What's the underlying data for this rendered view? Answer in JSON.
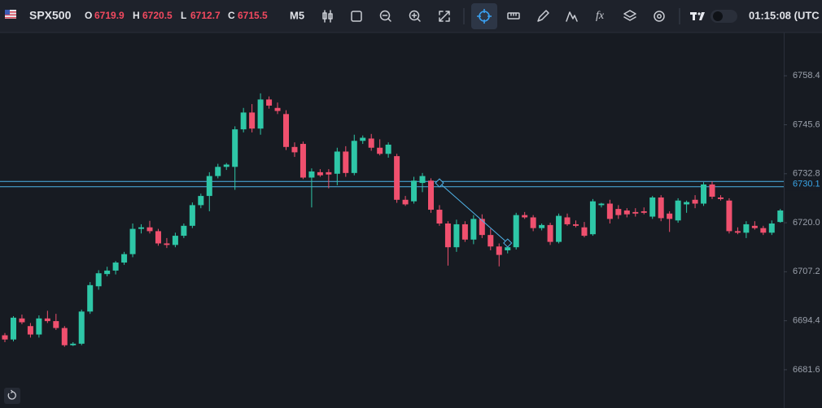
{
  "toolbar": {
    "symbol": "SPX500",
    "ohlc": [
      {
        "label": "O",
        "value": 6719.9
      },
      {
        "label": "H",
        "value": 6720.5
      },
      {
        "label": "L",
        "value": 6712.7
      },
      {
        "label": "C",
        "value": 6715.5
      }
    ],
    "timeframe": "M5",
    "clock": "01:15:08 (UTC"
  },
  "chart_data": {
    "type": "candlestick",
    "up_color": "#2ec7a7",
    "down_color": "#f0506e",
    "open": [
      6690.6,
      6689.5,
      6695.0,
      6693.0,
      6690.8,
      6695.0,
      6694.3,
      6692.5,
      6688.0,
      6688.4,
      6696.8,
      6703.4,
      6706.6,
      6707.5,
      6709.6,
      6711.8,
      6718.4,
      6718.8,
      6717.8,
      6714.6,
      6714.2,
      6716.6,
      6719.2,
      6724.6,
      6727.0,
      6732.2,
      6734.6,
      6734.6,
      6744.4,
      6748.8,
      6744.6,
      6752.2,
      6750.0,
      6748.4,
      6739.8,
      6740.6,
      6731.8,
      6733.2,
      6733.2,
      6732.8,
      6738.6,
      6733.0,
      6741.4,
      6742.0,
      6739.6,
      6738.0,
      6737.4,
      6726.0,
      6725.6,
      6730.4,
      6731.0,
      6723.4,
      6719.8,
      6713.6,
      6719.6,
      6715.6,
      6721.0,
      6716.8,
      6713.8,
      6712.8,
      6713.6,
      6722.0,
      6721.4,
      6718.6,
      6719.4,
      6715.0,
      6721.4,
      6719.6,
      6718.8,
      6717.0,
      6724.6,
      6725.0,
      6723.6,
      6723.2,
      6722.8,
      6723.0,
      6721.6,
      6726.6,
      6722.4,
      6720.6,
      6724.8,
      6726.0,
      6725.0,
      6730.0,
      6726.6,
      6725.8,
      6717.8,
      6717.4,
      6719.2,
      6718.6,
      6717.4,
      6720.2
    ],
    "high": [
      6691.2,
      6695.6,
      6696.0,
      6693.8,
      6695.8,
      6697.0,
      6696.2,
      6693.0,
      6688.8,
      6697.3,
      6704.5,
      6707.6,
      6708.5,
      6710.0,
      6712.4,
      6719.8,
      6719.6,
      6720.5,
      6718.4,
      6716.0,
      6717.4,
      6719.8,
      6725.3,
      6727.6,
      6733.2,
      6735.4,
      6735.6,
      6745.2,
      6750.0,
      6751.0,
      6753.8,
      6753.0,
      6751.4,
      6749.4,
      6741.0,
      6741.2,
      6734.2,
      6734.0,
      6734.0,
      6739.6,
      6740.0,
      6743.0,
      6742.8,
      6743.2,
      6741.8,
      6741.0,
      6738.0,
      6727.0,
      6732.0,
      6733.0,
      6731.6,
      6724.6,
      6720.4,
      6720.8,
      6720.4,
      6722.0,
      6722.2,
      6718.4,
      6714.6,
      6714.4,
      6722.6,
      6722.8,
      6722.0,
      6719.8,
      6720.0,
      6722.4,
      6722.4,
      6720.6,
      6720.2,
      6726.2,
      6725.2,
      6726.0,
      6724.6,
      6723.8,
      6723.8,
      6724.0,
      6727.0,
      6727.2,
      6723.0,
      6726.4,
      6725.8,
      6727.2,
      6730.6,
      6730.8,
      6727.2,
      6726.4,
      6718.8,
      6720.4,
      6720.4,
      6719.2,
      6720.6,
      6723.6
    ],
    "low": [
      6688.8,
      6689.0,
      6693.5,
      6690.0,
      6690.0,
      6693.8,
      6692.0,
      6687.6,
      6687.8,
      6688.0,
      6696.2,
      6702.5,
      6706.0,
      6706.5,
      6709.0,
      6711.0,
      6717.2,
      6717.2,
      6714.0,
      6713.4,
      6713.6,
      6716.0,
      6718.6,
      6723.8,
      6723.0,
      6731.6,
      6733.8,
      6728.6,
      6743.6,
      6743.6,
      6743.0,
      6749.8,
      6748.4,
      6739.0,
      6737.2,
      6731.4,
      6724.0,
      6732.0,
      6729.0,
      6729.8,
      6732.0,
      6732.4,
      6740.6,
      6738.8,
      6737.6,
      6737.0,
      6725.2,
      6724.4,
      6725.0,
      6728.0,
      6722.6,
      6719.2,
      6708.8,
      6712.4,
      6715.0,
      6714.4,
      6716.0,
      6712.8,
      6708.6,
      6712.0,
      6713.0,
      6721.0,
      6717.8,
      6718.0,
      6714.2,
      6714.6,
      6719.2,
      6718.8,
      6716.2,
      6716.6,
      6724.0,
      6719.8,
      6721.0,
      6721.4,
      6721.6,
      6722.2,
      6721.0,
      6720.4,
      6717.6,
      6720.0,
      6722.6,
      6723.8,
      6724.4,
      6726.2,
      6725.8,
      6717.2,
      6717.0,
      6716.0,
      6718.2,
      6716.8,
      6716.8,
      6720.0
    ],
    "close": [
      6689.5,
      6695.2,
      6694.0,
      6690.8,
      6695.0,
      6694.3,
      6692.5,
      6688.0,
      6688.4,
      6696.8,
      6703.7,
      6706.8,
      6707.5,
      6709.6,
      6711.8,
      6718.4,
      6718.8,
      6717.8,
      6714.6,
      6714.2,
      6716.6,
      6719.2,
      6724.6,
      6727.0,
      6732.2,
      6734.6,
      6735.2,
      6744.4,
      6748.8,
      6744.6,
      6752.2,
      6750.6,
      6749.2,
      6739.8,
      6738.4,
      6731.8,
      6733.4,
      6732.4,
      6732.6,
      6738.6,
      6733.0,
      6741.4,
      6742.2,
      6739.6,
      6738.0,
      6740.4,
      6726.0,
      6724.8,
      6731.0,
      6732.2,
      6723.4,
      6719.8,
      6713.6,
      6719.6,
      6715.6,
      6721.0,
      6716.8,
      6713.8,
      6711.6,
      6713.6,
      6722.0,
      6721.4,
      6718.6,
      6719.4,
      6715.0,
      6721.8,
      6719.6,
      6719.2,
      6716.6,
      6725.6,
      6725.0,
      6721.0,
      6722.0,
      6722.2,
      6722.4,
      6722.6,
      6726.6,
      6721.2,
      6721.0,
      6725.8,
      6725.4,
      6725.0,
      6730.0,
      6726.8,
      6726.2,
      6717.8,
      6717.4,
      6719.6,
      6718.6,
      6717.4,
      6719.8,
      6723.2
    ],
    "ylim": [
      6671.6,
      6769.7
    ],
    "yticks": [
      6681.6,
      6694.4,
      6707.2,
      {
        "value": 6720,
        "label": "6720.0"
      },
      6732.8,
      6745.6,
      6758.4
    ],
    "hlines": [
      6730.8,
      6729.4
    ],
    "last_price": 6730.1,
    "trend_line": [
      6730.4,
      6714.7
    ]
  }
}
